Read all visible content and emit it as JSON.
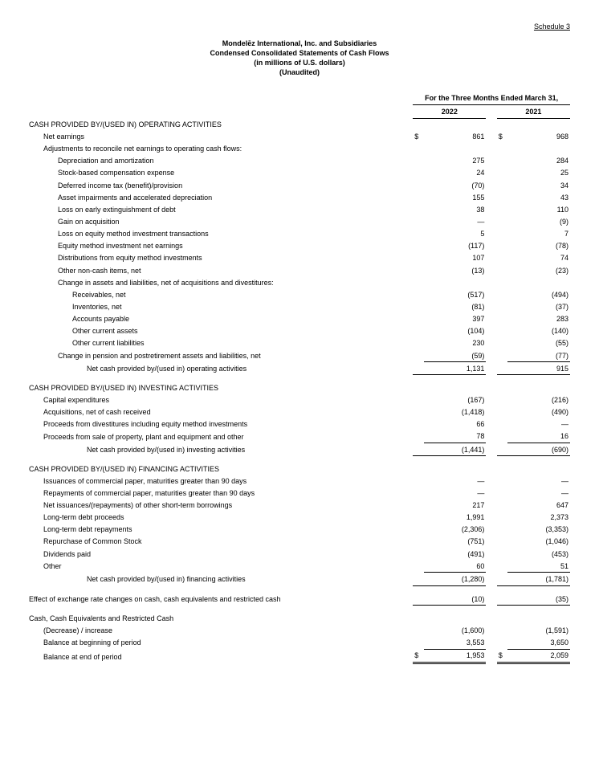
{
  "schedule": "Schedule 3",
  "header": {
    "l1": "Mondelēz International, Inc. and Subsidiaries",
    "l2": "Condensed Consolidated Statements of Cash Flows",
    "l3": "(in millions of U.S. dollars)",
    "l4": "(Unaudited)"
  },
  "period": "For the Three Months Ended March 31,",
  "years": {
    "a": "2022",
    "b": "2021"
  },
  "cur": "$",
  "sec": {
    "op": "CASH PROVIDED BY/(USED IN) OPERATING ACTIVITIES",
    "inv": "CASH PROVIDED BY/(USED IN) INVESTING ACTIVITIES",
    "fin": "CASH PROVIDED BY/(USED IN) FINANCING ACTIVITIES"
  },
  "rows": {
    "r01": {
      "l": "Net earnings",
      "a": "861",
      "b": "968"
    },
    "r02": {
      "l": "Adjustments to reconcile net earnings to operating cash flows:"
    },
    "r03": {
      "l": "Depreciation and amortization",
      "a": "275",
      "b": "284"
    },
    "r04": {
      "l": "Stock-based compensation expense",
      "a": "24",
      "b": "25"
    },
    "r05": {
      "l": "Deferred income tax (benefit)/provision",
      "a": "(70)",
      "b": "34"
    },
    "r06": {
      "l": "Asset impairments and accelerated depreciation",
      "a": "155",
      "b": "43"
    },
    "r07": {
      "l": "Loss on early extinguishment of debt",
      "a": "38",
      "b": "110"
    },
    "r08": {
      "l": "Gain on acquisition",
      "a": "—",
      "b": "(9)"
    },
    "r09": {
      "l": "Loss on equity method investment transactions",
      "a": "5",
      "b": "7"
    },
    "r10": {
      "l": "Equity method investment net earnings",
      "a": "(117)",
      "b": "(78)"
    },
    "r11": {
      "l": "Distributions from equity method investments",
      "a": "107",
      "b": "74"
    },
    "r12": {
      "l": "Other non-cash items, net",
      "a": "(13)",
      "b": "(23)"
    },
    "r13": {
      "l": "Change in assets and liabilities, net of acquisitions and divestitures:"
    },
    "r14": {
      "l": "Receivables, net",
      "a": "(517)",
      "b": "(494)"
    },
    "r15": {
      "l": "Inventories, net",
      "a": "(81)",
      "b": "(37)"
    },
    "r16": {
      "l": "Accounts payable",
      "a": "397",
      "b": "283"
    },
    "r17": {
      "l": "Other current assets",
      "a": "(104)",
      "b": "(140)"
    },
    "r18": {
      "l": "Other current liabilities",
      "a": "230",
      "b": "(55)"
    },
    "r19": {
      "l": "Change in pension and postretirement assets and liabilities, net",
      "a": "(59)",
      "b": "(77)"
    },
    "r20": {
      "l": "Net cash provided by/(used in) operating activities",
      "a": "1,131",
      "b": "915"
    },
    "r21": {
      "l": "Capital expenditures",
      "a": "(167)",
      "b": "(216)"
    },
    "r22": {
      "l": "Acquisitions, net of cash received",
      "a": "(1,418)",
      "b": "(490)"
    },
    "r23": {
      "l": "Proceeds from divestitures including equity method investments",
      "a": "66",
      "b": "—"
    },
    "r24": {
      "l": "Proceeds from sale of property, plant and equipment and other",
      "a": "78",
      "b": "16"
    },
    "r25": {
      "l": "Net cash provided by/(used in) investing activities",
      "a": "(1,441)",
      "b": "(690)"
    },
    "r26": {
      "l": "Issuances of commercial paper, maturities greater than 90 days",
      "a": "—",
      "b": "—"
    },
    "r27": {
      "l": "Repayments of commercial paper, maturities greater than 90 days",
      "a": "—",
      "b": "—"
    },
    "r28": {
      "l": "Net issuances/(repayments) of other short-term borrowings",
      "a": "217",
      "b": "647"
    },
    "r29": {
      "l": "Long-term debt proceeds",
      "a": "1,991",
      "b": "2,373"
    },
    "r30": {
      "l": "Long-term debt repayments",
      "a": "(2,306)",
      "b": "(3,353)"
    },
    "r31": {
      "l": "Repurchase of Common Stock",
      "a": "(751)",
      "b": "(1,046)"
    },
    "r32": {
      "l": "Dividends paid",
      "a": "(491)",
      "b": "(453)"
    },
    "r33": {
      "l": "Other",
      "a": "60",
      "b": "51"
    },
    "r34": {
      "l": "Net cash provided by/(used in) financing activities",
      "a": "(1,280)",
      "b": "(1,781)"
    },
    "r35": {
      "l": "Effect of exchange rate changes on cash, cash equivalents and restricted cash",
      "a": "(10)",
      "b": "(35)"
    },
    "r36": {
      "l": "Cash, Cash Equivalents and Restricted Cash"
    },
    "r37": {
      "l": "(Decrease) / increase",
      "a": "(1,600)",
      "b": "(1,591)"
    },
    "r38": {
      "l": "Balance at beginning of period",
      "a": "3,553",
      "b": "3,650"
    },
    "r39": {
      "l": "Balance at end of period",
      "a": "1,953",
      "b": "2,059"
    }
  }
}
